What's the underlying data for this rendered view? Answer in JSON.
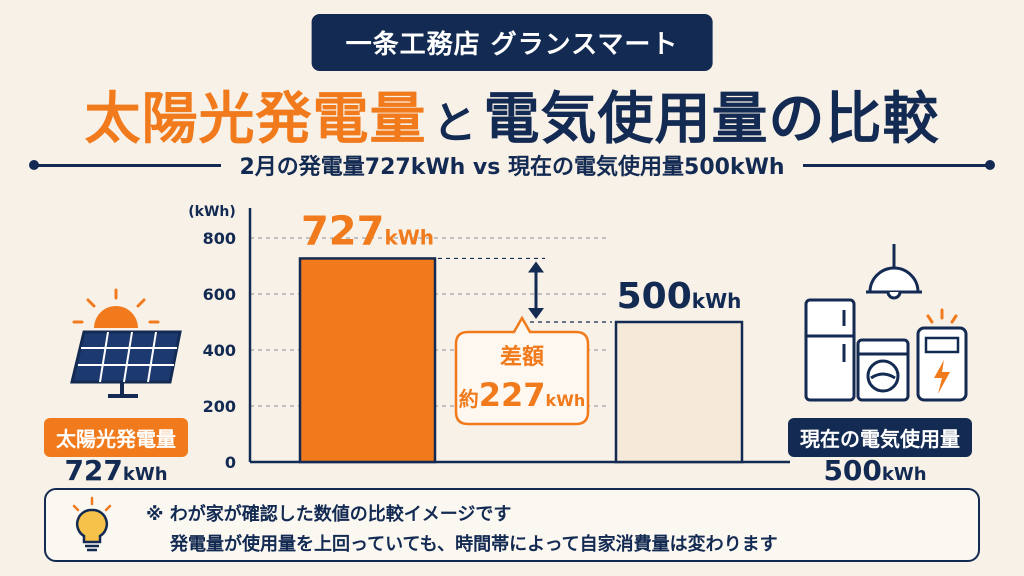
{
  "header": {
    "badge": "一条工務店 グランスマート",
    "title_part1": "太陽光発電量",
    "title_part2": "と",
    "title_part3": "電気使用量の比較",
    "subtitle": "2月の発電量727kWh vs 現在の電気使用量500kWh"
  },
  "chart_data": {
    "type": "bar",
    "categories": [
      "太陽光発電量",
      "現在の電気使用量"
    ],
    "values": [
      727,
      500
    ],
    "value_labels": [
      "727",
      "500"
    ],
    "unit": "kWh",
    "ylabel": "(kWh)",
    "ylim": [
      0,
      800
    ],
    "yticks": [
      0,
      200,
      400,
      600,
      800
    ],
    "grid": "dashed",
    "colors": [
      "#f07a1c",
      "#f5ead9"
    ],
    "difference": {
      "label": "差額",
      "prefix": "約",
      "value": "227",
      "unit": "kWh"
    }
  },
  "left_panel": {
    "label": "太陽光発電量",
    "value": "727",
    "unit": "kWh"
  },
  "right_panel": {
    "label": "現在の電気使用量",
    "value": "500",
    "unit": "kWh"
  },
  "note": {
    "line1": "※ わが家が確認した数値の比較イメージです",
    "line2": "発電量が使用量を上回っていても、時間帯によって自家消費量は変わります"
  },
  "colors": {
    "accent": "#f07a1c",
    "navy": "#132a52",
    "background": "#f8f1e8"
  },
  "icons": [
    "sun-icon",
    "solar-panel-icon",
    "lamp-icon",
    "refrigerator-icon",
    "washing-machine-icon",
    "electric-meter-icon",
    "light-bulb-icon"
  ]
}
